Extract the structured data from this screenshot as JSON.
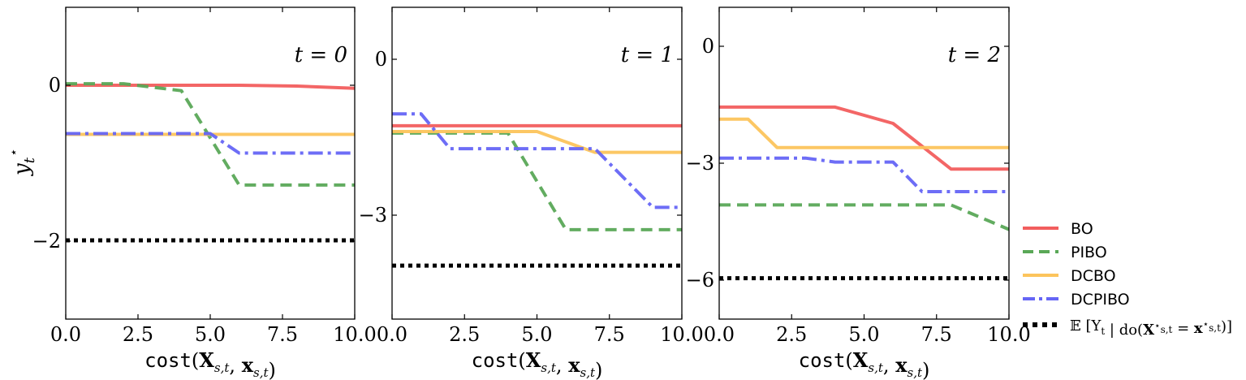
{
  "chart_data": [
    {
      "type": "line",
      "annotation": "t = 0",
      "xlabel": "cost(X_{s,t}, x_{s,t})",
      "ylabel": "y*_t",
      "xlim": [
        0,
        10
      ],
      "ylim": [
        -3,
        1
      ],
      "xticks": [
        "0.0",
        "2.5",
        "5.0",
        "7.5",
        "10.0"
      ],
      "xtick_values": [
        0,
        2.5,
        5,
        7.5,
        10
      ],
      "yticks": [
        "0",
        "−2"
      ],
      "ytick_values": [
        0,
        -2
      ],
      "series": [
        {
          "name": "BO",
          "x": [
            0,
            6,
            8,
            10
          ],
          "y": [
            0.0,
            0.0,
            -0.01,
            -0.04
          ]
        },
        {
          "name": "PIBO",
          "x": [
            0,
            2,
            4,
            6,
            10
          ],
          "y": [
            0.02,
            0.02,
            -0.07,
            -1.28,
            -1.28
          ]
        },
        {
          "name": "DCBO",
          "x": [
            0,
            10
          ],
          "y": [
            -0.63,
            -0.63
          ]
        },
        {
          "name": "DCPIBO",
          "x": [
            0,
            5,
            6,
            10
          ],
          "y": [
            -0.62,
            -0.62,
            -0.87,
            -0.87
          ]
        },
        {
          "name": "E[Y_t | do(X*_{s,t} = x*_{s,t})]",
          "x": [
            0,
            10
          ],
          "y": [
            -1.99,
            -1.99
          ]
        }
      ]
    },
    {
      "type": "line",
      "annotation": "t = 1",
      "xlabel": "cost(X_{s,t}, x_{s,t})",
      "ylabel": "",
      "xlim": [
        0,
        10
      ],
      "ylim": [
        -5,
        1
      ],
      "xticks": [
        "0.0",
        "2.5",
        "5.0",
        "7.5",
        "10.0"
      ],
      "xtick_values": [
        0,
        2.5,
        5,
        7.5,
        10
      ],
      "yticks": [
        "0",
        "−3"
      ],
      "ytick_values": [
        0,
        -3
      ],
      "series": [
        {
          "name": "BO",
          "x": [
            0,
            10
          ],
          "y": [
            -1.28,
            -1.28
          ]
        },
        {
          "name": "PIBO",
          "x": [
            0,
            4,
            6,
            10
          ],
          "y": [
            -1.42,
            -1.42,
            -3.28,
            -3.28
          ]
        },
        {
          "name": "DCBO",
          "x": [
            0,
            5,
            7,
            10
          ],
          "y": [
            -1.39,
            -1.39,
            -1.79,
            -1.79
          ]
        },
        {
          "name": "DCPIBO",
          "x": [
            0,
            1,
            2,
            7,
            9,
            10
          ],
          "y": [
            -1.05,
            -1.05,
            -1.72,
            -1.72,
            -2.85,
            -2.85
          ]
        },
        {
          "name": "E[Y_t | do(X*_{s,t} = x*_{s,t})]",
          "x": [
            0,
            10
          ],
          "y": [
            -3.97,
            -3.97
          ]
        }
      ]
    },
    {
      "type": "line",
      "annotation": "t = 2",
      "xlabel": "cost(X_{s,t}, x_{s,t})",
      "ylabel": "",
      "xlim": [
        0,
        10
      ],
      "ylim": [
        -7,
        1
      ],
      "xticks": [
        "0.0",
        "2.5",
        "5.0",
        "7.5",
        "10.0"
      ],
      "xtick_values": [
        0,
        2.5,
        5,
        7.5,
        10
      ],
      "yticks": [
        "0",
        "−3",
        "−6"
      ],
      "ytick_values": [
        0,
        -3,
        -6
      ],
      "series": [
        {
          "name": "BO",
          "x": [
            0,
            4,
            6,
            8,
            10
          ],
          "y": [
            -1.56,
            -1.56,
            -1.98,
            -3.15,
            -3.15
          ]
        },
        {
          "name": "PIBO",
          "x": [
            0,
            8,
            10
          ],
          "y": [
            -4.07,
            -4.07,
            -4.7
          ]
        },
        {
          "name": "DCBO",
          "x": [
            0,
            1,
            2,
            10
          ],
          "y": [
            -1.87,
            -1.87,
            -2.6,
            -2.6
          ]
        },
        {
          "name": "DCPIBO",
          "x": [
            0,
            3,
            4,
            6,
            7,
            10
          ],
          "y": [
            -2.87,
            -2.87,
            -2.97,
            -2.97,
            -3.73,
            -3.73
          ]
        },
        {
          "name": "E[Y_t | do(X*_{s,t} = x*_{s,t})]",
          "x": [
            0,
            10
          ],
          "y": [
            -5.95,
            -5.95
          ]
        }
      ]
    }
  ],
  "legend": {
    "position": "right",
    "items": [
      {
        "label": "BO",
        "color": "#f25e5e",
        "style": "solid"
      },
      {
        "label": "PIBO",
        "color": "#5aa857",
        "style": "dashed"
      },
      {
        "label": "DCBO",
        "color": "#fcc45c",
        "style": "solid"
      },
      {
        "label": "DCPIBO",
        "color": "#6565f5",
        "style": "dashdot"
      },
      {
        "label": "E[Y_t | do(X*_{s,t} = x*_{s,t})]",
        "color": "#000000",
        "style": "dotted"
      }
    ]
  },
  "styles": {
    "BO": {
      "color": "#f25e5e",
      "dash": ""
    },
    "PIBO": {
      "color": "#5aa857",
      "dash": "14 8"
    },
    "DCBO": {
      "color": "#fcc45c",
      "dash": ""
    },
    "DCPIBO": {
      "color": "#6565f5",
      "dash": "18 6 4 6"
    },
    "E[Y_t | do(X*_{s,t} = x*_{s,t})]": {
      "color": "#000000",
      "dash": "5 5"
    }
  }
}
